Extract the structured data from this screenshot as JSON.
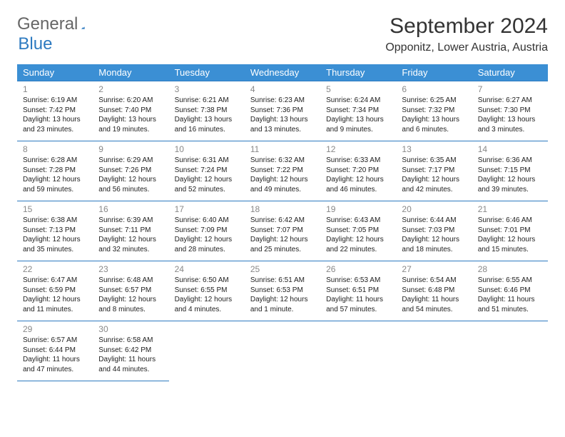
{
  "logo": {
    "general": "General",
    "blue": "Blue"
  },
  "title": {
    "month": "September 2024",
    "location": "Opponitz, Lower Austria, Austria"
  },
  "colors": {
    "header_bg": "#3b8fd4",
    "rule": "#2d7ac0",
    "daynum": "#888888",
    "text": "#222222"
  },
  "fonts": {
    "month_pt": 30,
    "location_pt": 16,
    "header_pt": 13,
    "cell_pt": 10
  },
  "weekdays": [
    "Sunday",
    "Monday",
    "Tuesday",
    "Wednesday",
    "Thursday",
    "Friday",
    "Saturday"
  ],
  "labels": {
    "sunrise": "Sunrise:",
    "sunset": "Sunset:",
    "daylight": "Daylight:"
  },
  "days": [
    {
      "n": 1,
      "sr": "6:19 AM",
      "ss": "7:42 PM",
      "dl": "13 hours and 23 minutes."
    },
    {
      "n": 2,
      "sr": "6:20 AM",
      "ss": "7:40 PM",
      "dl": "13 hours and 19 minutes."
    },
    {
      "n": 3,
      "sr": "6:21 AM",
      "ss": "7:38 PM",
      "dl": "13 hours and 16 minutes."
    },
    {
      "n": 4,
      "sr": "6:23 AM",
      "ss": "7:36 PM",
      "dl": "13 hours and 13 minutes."
    },
    {
      "n": 5,
      "sr": "6:24 AM",
      "ss": "7:34 PM",
      "dl": "13 hours and 9 minutes."
    },
    {
      "n": 6,
      "sr": "6:25 AM",
      "ss": "7:32 PM",
      "dl": "13 hours and 6 minutes."
    },
    {
      "n": 7,
      "sr": "6:27 AM",
      "ss": "7:30 PM",
      "dl": "13 hours and 3 minutes."
    },
    {
      "n": 8,
      "sr": "6:28 AM",
      "ss": "7:28 PM",
      "dl": "12 hours and 59 minutes."
    },
    {
      "n": 9,
      "sr": "6:29 AM",
      "ss": "7:26 PM",
      "dl": "12 hours and 56 minutes."
    },
    {
      "n": 10,
      "sr": "6:31 AM",
      "ss": "7:24 PM",
      "dl": "12 hours and 52 minutes."
    },
    {
      "n": 11,
      "sr": "6:32 AM",
      "ss": "7:22 PM",
      "dl": "12 hours and 49 minutes."
    },
    {
      "n": 12,
      "sr": "6:33 AM",
      "ss": "7:20 PM",
      "dl": "12 hours and 46 minutes."
    },
    {
      "n": 13,
      "sr": "6:35 AM",
      "ss": "7:17 PM",
      "dl": "12 hours and 42 minutes."
    },
    {
      "n": 14,
      "sr": "6:36 AM",
      "ss": "7:15 PM",
      "dl": "12 hours and 39 minutes."
    },
    {
      "n": 15,
      "sr": "6:38 AM",
      "ss": "7:13 PM",
      "dl": "12 hours and 35 minutes."
    },
    {
      "n": 16,
      "sr": "6:39 AM",
      "ss": "7:11 PM",
      "dl": "12 hours and 32 minutes."
    },
    {
      "n": 17,
      "sr": "6:40 AM",
      "ss": "7:09 PM",
      "dl": "12 hours and 28 minutes."
    },
    {
      "n": 18,
      "sr": "6:42 AM",
      "ss": "7:07 PM",
      "dl": "12 hours and 25 minutes."
    },
    {
      "n": 19,
      "sr": "6:43 AM",
      "ss": "7:05 PM",
      "dl": "12 hours and 22 minutes."
    },
    {
      "n": 20,
      "sr": "6:44 AM",
      "ss": "7:03 PM",
      "dl": "12 hours and 18 minutes."
    },
    {
      "n": 21,
      "sr": "6:46 AM",
      "ss": "7:01 PM",
      "dl": "12 hours and 15 minutes."
    },
    {
      "n": 22,
      "sr": "6:47 AM",
      "ss": "6:59 PM",
      "dl": "12 hours and 11 minutes."
    },
    {
      "n": 23,
      "sr": "6:48 AM",
      "ss": "6:57 PM",
      "dl": "12 hours and 8 minutes."
    },
    {
      "n": 24,
      "sr": "6:50 AM",
      "ss": "6:55 PM",
      "dl": "12 hours and 4 minutes."
    },
    {
      "n": 25,
      "sr": "6:51 AM",
      "ss": "6:53 PM",
      "dl": "12 hours and 1 minute."
    },
    {
      "n": 26,
      "sr": "6:53 AM",
      "ss": "6:51 PM",
      "dl": "11 hours and 57 minutes."
    },
    {
      "n": 27,
      "sr": "6:54 AM",
      "ss": "6:48 PM",
      "dl": "11 hours and 54 minutes."
    },
    {
      "n": 28,
      "sr": "6:55 AM",
      "ss": "6:46 PM",
      "dl": "11 hours and 51 minutes."
    },
    {
      "n": 29,
      "sr": "6:57 AM",
      "ss": "6:44 PM",
      "dl": "11 hours and 47 minutes."
    },
    {
      "n": 30,
      "sr": "6:58 AM",
      "ss": "6:42 PM",
      "dl": "11 hours and 44 minutes."
    }
  ],
  "grid": {
    "start_weekday": 0,
    "rows": 5,
    "cols": 7
  }
}
